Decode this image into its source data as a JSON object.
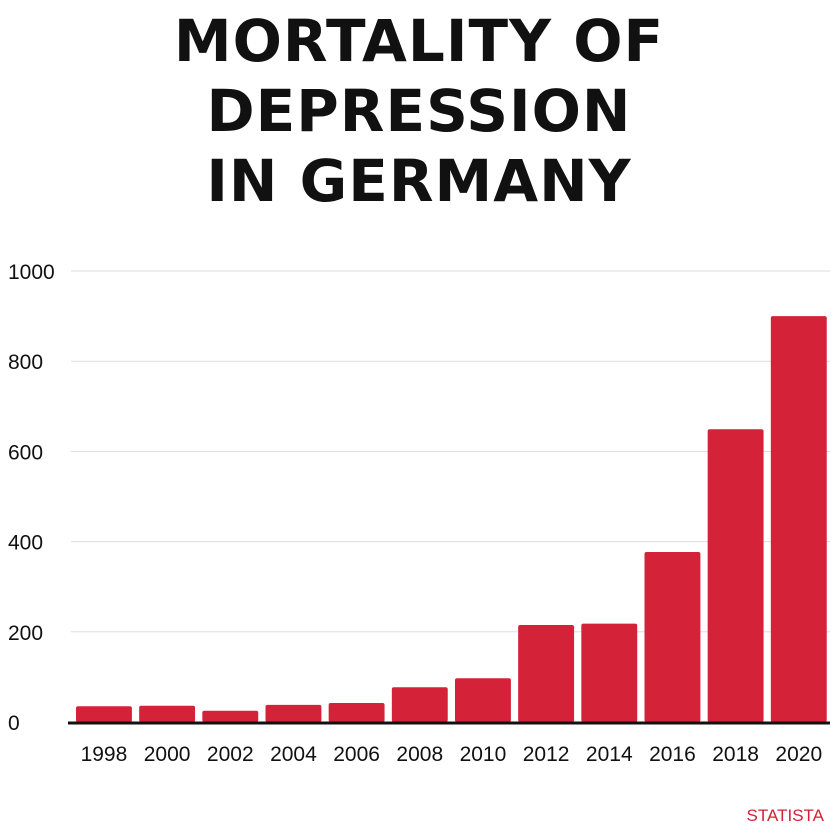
{
  "title_line1": "MORTALITY OF DEPRESSION",
  "title_line2": "IN GERMANY",
  "source": "STATISTA",
  "colors": {
    "bar": "#d42238",
    "grid": "#dddddd",
    "axis": "#111111",
    "text": "#111111"
  },
  "chart_data": {
    "type": "bar",
    "title": "MORTALITY OF DEPRESSION IN GERMANY",
    "categories": [
      "1998",
      "2000",
      "2002",
      "2004",
      "2006",
      "2008",
      "2010",
      "2012",
      "2014",
      "2016",
      "2018",
      "2020"
    ],
    "values": [
      35,
      36,
      25,
      38,
      42,
      77,
      97,
      215,
      218,
      377,
      649,
      900
    ],
    "ylim": [
      0,
      1000
    ],
    "yticks": [
      0,
      200,
      400,
      600,
      800,
      1000
    ],
    "xlabel": "",
    "ylabel": "",
    "grid": true
  }
}
